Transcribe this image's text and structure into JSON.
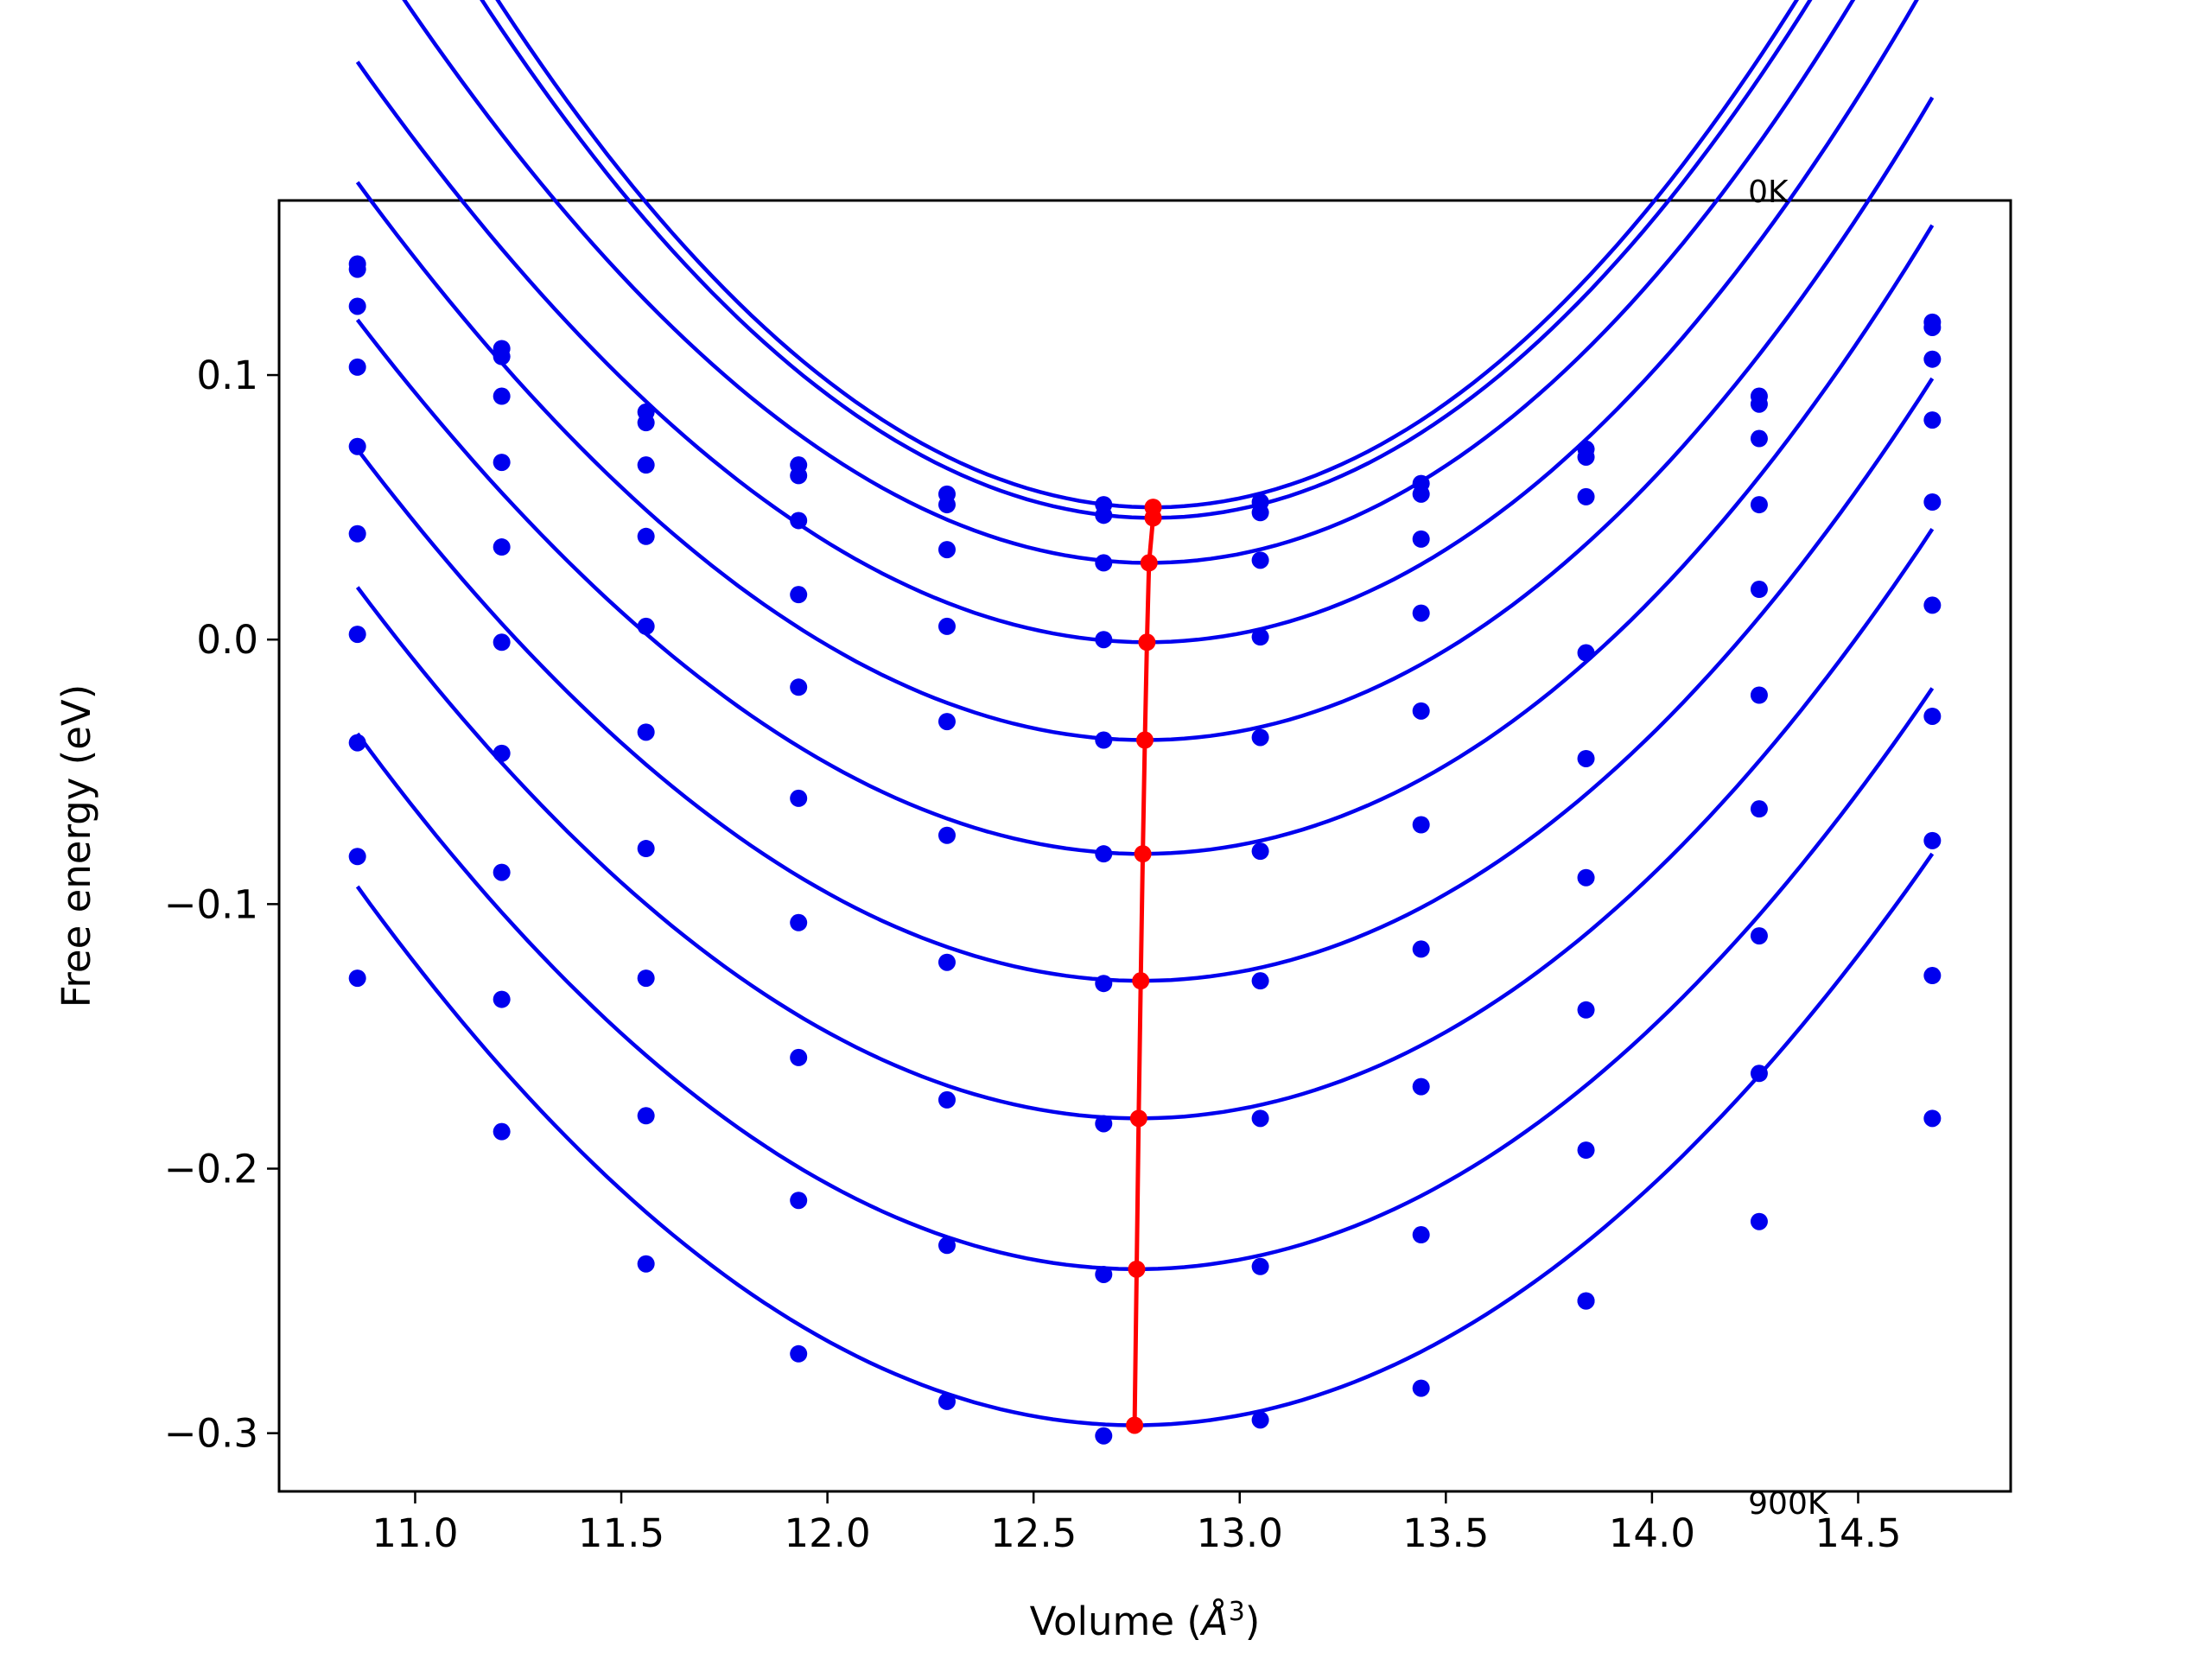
{
  "chart_data": {
    "type": "line",
    "xlabel": "Volume (",
    "xlabel_sup": "3",
    "xlabel_unit": "Å",
    "xlabel_end": ")",
    "ylabel": "Free energy (eV)",
    "xlim": [
      10.67,
      14.87
    ],
    "ylim": [
      -0.322,
      0.166
    ],
    "xticks": [
      11.0,
      11.5,
      12.0,
      12.5,
      13.0,
      13.5,
      14.0,
      14.5
    ],
    "xtick_labels": [
      "11.0",
      "11.5",
      "12.0",
      "12.5",
      "13.0",
      "13.5",
      "14.0",
      "14.5"
    ],
    "yticks": [
      -0.3,
      -0.2,
      -0.1,
      0.0,
      0.1
    ],
    "ytick_labels": [
      "−0.3",
      "−0.2",
      "−0.1",
      "0.0",
      "0.1"
    ],
    "annotations": [
      {
        "text": "0K",
        "x": 14.25,
        "y": 0.17
      },
      {
        "text": "900K",
        "x": 14.25,
        "y": -0.326
      }
    ],
    "x": [
      10.86,
      11.21,
      11.56,
      11.93,
      12.29,
      12.67,
      13.05,
      13.44,
      13.84,
      14.26,
      14.68
    ],
    "colors": {
      "isotherm": "#0000ee",
      "minimum": "#ff0000"
    },
    "series": [
      {
        "values": [
          0.142,
          0.11,
          0.086,
          0.066,
          0.055,
          0.051,
          0.052,
          0.059,
          0.072,
          0.089,
          0.12
        ],
        "fit": {
          "vmin": 12.79,
          "fmin": 0.05,
          "a": 0.0773,
          "b": 0.0009
        }
      },
      {
        "values": [
          0.14,
          0.107,
          0.082,
          0.062,
          0.051,
          0.047,
          0.048,
          0.055,
          0.069,
          0.092,
          0.118
        ],
        "fit": {
          "vmin": 12.79,
          "fmin": 0.046,
          "a": 0.0755,
          "b": 0.001
        }
      },
      {
        "values": [
          0.126,
          0.092,
          0.066,
          0.045,
          0.034,
          0.029,
          0.03,
          0.038,
          0.054,
          0.076,
          0.106
        ],
        "fit": {
          "vmin": 12.78,
          "fmin": 0.029,
          "a": 0.0692,
          "b": 0.0022
        }
      },
      {
        "values": [
          0.103,
          0.067,
          0.039,
          0.017,
          0.005,
          0.0,
          0.001,
          0.01,
          -0.005,
          0.051,
          0.083
        ],
        "fit": {
          "vmin": 12.775,
          "fmin": -0.001,
          "a": 0.0648,
          "b": 0.0026
        }
      },
      {
        "values": [
          0.073,
          0.035,
          0.005,
          -0.018,
          -0.031,
          -0.038,
          -0.037,
          -0.027,
          -0.045,
          0.019,
          0.052
        ],
        "fit": {
          "vmin": 12.77,
          "fmin": -0.038,
          "a": 0.0622,
          "b": 0.0023
        }
      },
      {
        "values": [
          0.04,
          -0.001,
          -0.035,
          -0.06,
          -0.074,
          -0.081,
          -0.08,
          -0.07,
          -0.09,
          -0.021,
          0.013
        ],
        "fit": {
          "vmin": 12.765,
          "fmin": -0.081,
          "a": 0.0602,
          "b": 0.0024
        }
      },
      {
        "values": [
          0.002,
          -0.043,
          -0.079,
          -0.107,
          -0.122,
          -0.13,
          -0.129,
          -0.117,
          -0.14,
          -0.064,
          -0.029
        ],
        "fit": {
          "vmin": 12.76,
          "fmin": -0.129,
          "a": 0.0587,
          "b": 0.0016
        }
      },
      {
        "values": [
          -0.039,
          -0.088,
          -0.128,
          -0.158,
          -0.174,
          -0.183,
          -0.181,
          -0.169,
          -0.193,
          -0.112,
          -0.076
        ],
        "fit": {
          "vmin": 12.755,
          "fmin": -0.181,
          "a": 0.058,
          "b": 0.0011
        }
      },
      {
        "values": [
          -0.082,
          -0.136,
          -0.18,
          -0.212,
          -0.229,
          -0.24,
          -0.237,
          -0.225,
          -0.25,
          -0.164,
          -0.127
        ],
        "fit": {
          "vmin": 12.75,
          "fmin": -0.238,
          "a": 0.0578,
          "b": 0.0006
        }
      },
      {
        "values": [
          -0.128,
          -0.186,
          -0.236,
          -0.27,
          -0.288,
          -0.301,
          -0.295,
          -0.283,
          -0.25,
          -0.22,
          -0.181
        ],
        "fit": {
          "vmin": 12.745,
          "fmin": -0.297,
          "a": 0.0575,
          "b": 0.0001
        }
      }
    ]
  }
}
